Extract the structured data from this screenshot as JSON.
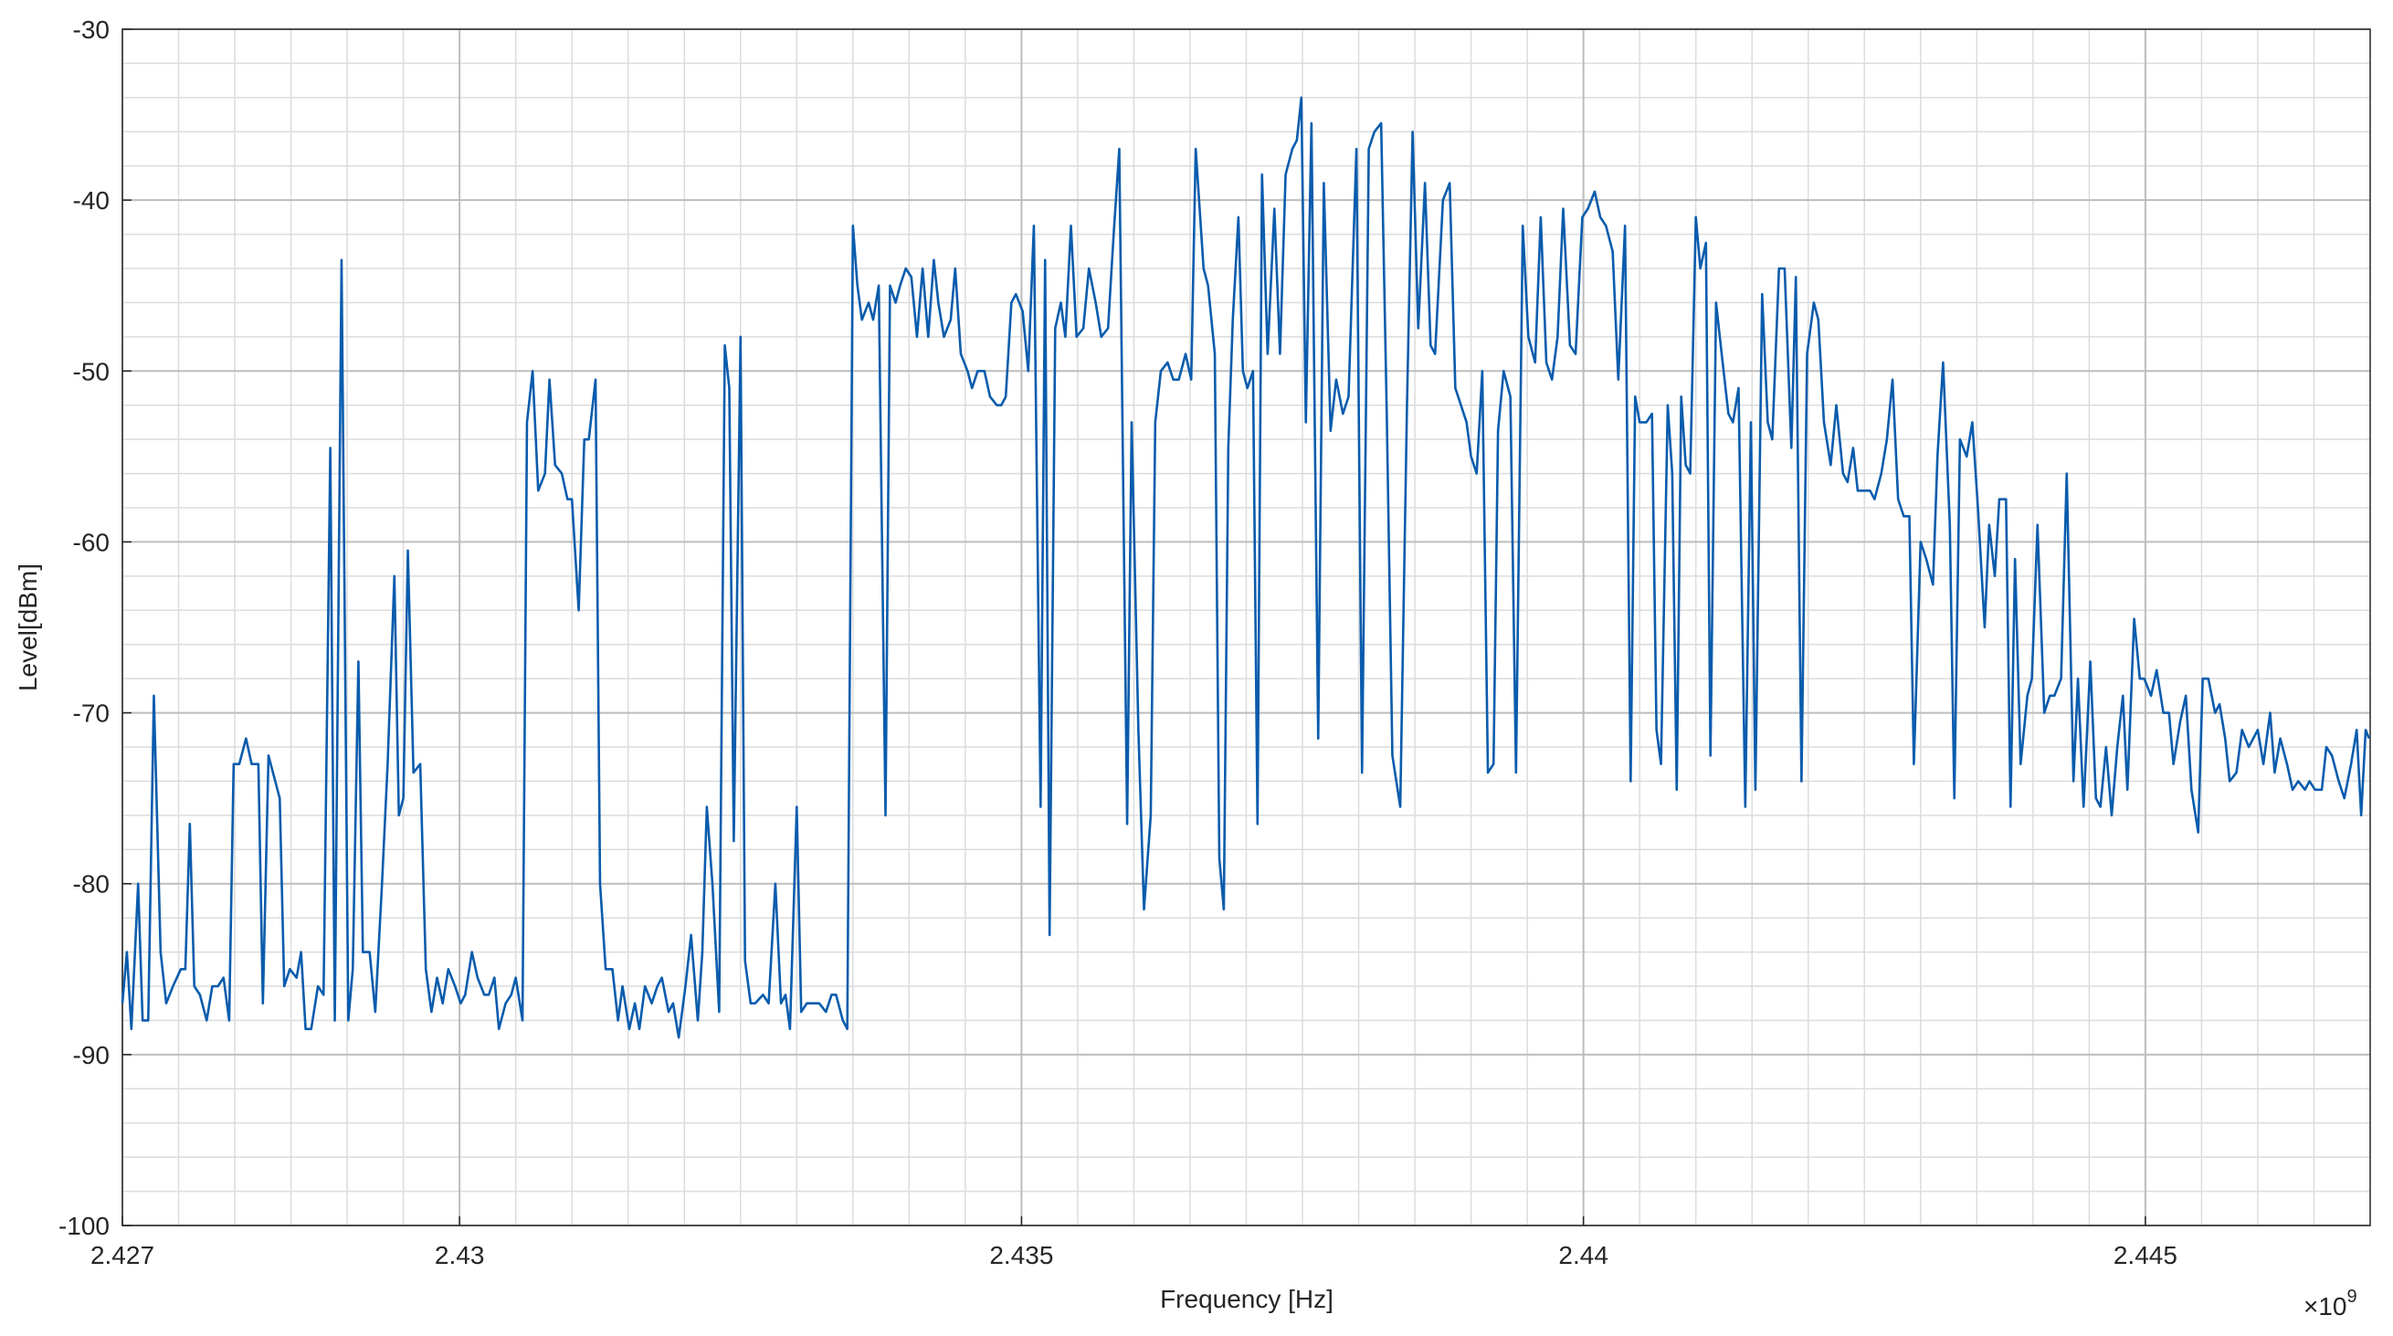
{
  "chart_data": {
    "type": "line",
    "x_label": "Frequency [Hz]",
    "y_label": "Level[dBm]",
    "x_multiplier": "×10",
    "x_exponent": "9",
    "xlim": [
      2.427,
      2.447
    ],
    "xticks": [
      2.427,
      2.43,
      2.435,
      2.44,
      2.445
    ],
    "ylim": [
      -100,
      -30
    ],
    "yticks": [
      -100,
      -90,
      -80,
      -70,
      -60,
      -50,
      -40,
      -30
    ],
    "grid": true,
    "minor_grid": {
      "x_step": 0.0005,
      "y_step": 2
    },
    "color": "#0a5cad",
    "x": [
      2.427,
      2.42704,
      2.42708,
      2.42714,
      2.42718,
      2.42723,
      2.42728,
      2.42734,
      2.42739,
      2.42745,
      2.42752,
      2.42756,
      2.4276,
      2.42764,
      2.42769,
      2.42775,
      2.4278,
      2.42785,
      2.4279,
      2.42795,
      2.42799,
      2.42804,
      2.4281,
      2.42815,
      2.42821,
      2.42825,
      2.4283,
      2.42836,
      2.4284,
      2.42844,
      2.42849,
      2.42855,
      2.42859,
      2.42863,
      2.42868,
      2.42874,
      2.42879,
      2.42885,
      2.42889,
      2.42895,
      2.42901,
      2.42905,
      2.4291,
      2.42914,
      2.4292,
      2.42925,
      2.42931,
      2.42936,
      2.42942,
      2.42946,
      2.4295,
      2.42954,
      2.42959,
      2.42965,
      2.4297,
      2.42975,
      2.4298,
      2.42985,
      2.4299,
      2.42996,
      2.43001,
      2.43005,
      2.43011,
      2.43016,
      2.43022,
      2.43026,
      2.43031,
      2.43035,
      2.43041,
      2.43046,
      2.4305,
      2.43056,
      2.4306,
      2.43065,
      2.4307,
      2.43076,
      2.4308,
      2.43085,
      2.43091,
      2.43096,
      2.431,
      2.43106,
      2.43111,
      2.43115,
      2.43121,
      2.43125,
      2.4313,
      2.43136,
      2.43141,
      2.43145,
      2.43151,
      2.43156,
      2.4316,
      2.43165,
      2.43171,
      2.43176,
      2.4318,
      2.43186,
      2.4319,
      2.43195,
      2.43201,
      2.43206,
      2.43212,
      2.43216,
      2.4322,
      2.43225,
      2.43231,
      2.43236,
      2.4324,
      2.43244,
      2.4325,
      2.43254,
      2.43259,
      2.43263,
      2.4327,
      2.43275,
      2.43281,
      2.43286,
      2.4329,
      2.43294,
      2.433,
      2.43304,
      2.43309,
      2.43315,
      2.4332,
      2.43326,
      2.43331,
      2.43335,
      2.43341,
      2.43345,
      2.4335,
      2.43354,
      2.43358,
      2.43364,
      2.43368,
      2.43373,
      2.43379,
      2.43383,
      2.43388,
      2.43392,
      2.43397,
      2.43402,
      2.43407,
      2.43412,
      2.43417,
      2.43422,
      2.43426,
      2.43431,
      2.43437,
      2.43441,
      2.43446,
      2.43452,
      2.43456,
      2.43461,
      2.43467,
      2.43472,
      2.43478,
      2.43482,
      2.43486,
      2.43491,
      2.43495,
      2.43501,
      2.43506,
      2.43511,
      2.43517,
      2.43521,
      2.43525,
      2.4353,
      2.43535,
      2.43539,
      2.43544,
      2.43549,
      2.43555,
      2.4356,
      2.43566,
      2.43571,
      2.43577,
      2.43582,
      2.43587,
      2.43594,
      2.43598,
      2.43604,
      2.43609,
      2.43615,
      2.43619,
      2.43624,
      2.4363,
      2.43635,
      2.4364,
      2.43646,
      2.43651,
      2.43655,
      2.43662,
      2.43666,
      2.43672,
      2.43676,
      2.4368,
      2.43684,
      2.43688,
      2.43693,
      2.43697,
      2.43701,
      2.43706,
      2.4371,
      2.43714,
      2.43719,
      2.43725,
      2.4373,
      2.43735,
      2.43741,
      2.43745,
      2.43749,
      2.43753,
      2.43758,
      2.43764,
      2.43769,
      2.43775,
      2.4378,
      2.43786,
      2.43791,
      2.43798,
      2.43803,
      2.43809,
      2.43814,
      2.4382,
      2.43825,
      2.4383,
      2.43837,
      2.43843,
      2.43848,
      2.43853,
      2.43859,
      2.43864,
      2.43868,
      2.43875,
      2.43881,
      2.43886,
      2.43891,
      2.43896,
      2.439,
      2.43905,
      2.4391,
      2.43915,
      2.4392,
      2.43924,
      2.43929,
      2.43935,
      2.4394,
      2.43946,
      2.43951,
      2.43957,
      2.43962,
      2.43967,
      2.43972,
      2.43977,
      2.43982,
      2.43988,
      2.43993,
      2.43999,
      2.44004,
      2.4401,
      2.44015,
      2.4402,
      2.44026,
      2.44031,
      2.44037,
      2.44042,
      2.44046,
      2.4405,
      2.44056,
      2.44061,
      2.44065,
      2.44069,
      2.44075,
      2.44079,
      2.44083,
      2.44087,
      2.44091,
      2.44095,
      2.441,
      2.44104,
      2.44109,
      2.44113,
      2.44118,
      2.44123,
      2.44129,
      2.44133,
      2.44138,
      2.44144,
      2.44149,
      2.44153,
      2.44159,
      2.44164,
      2.44168,
      2.44174,
      2.44179,
      2.44185,
      2.44189,
      2.44194,
      2.44199,
      2.44205,
      2.44209,
      2.44214,
      2.4422,
      2.44225,
      2.44231,
      2.44235,
      2.4424,
      2.44244,
      2.4425,
      2.44255,
      2.44259,
      2.44265,
      2.4427,
      2.44275,
      2.4428,
      2.44285,
      2.4429,
      2.44294,
      2.443,
      2.44305,
      2.44311,
      2.44315,
      2.4432,
      2.44326,
      2.4433,
      2.44335,
      2.44341,
      2.44346,
      2.44351,
      2.44357,
      2.44361,
      2.44366,
      2.4437,
      2.44376,
      2.4438,
      2.44384,
      2.44389,
      2.44395,
      2.44399,
      2.44404,
      2.4441,
      2.44415,
      2.44419,
      2.44425,
      2.4443,
      2.44436,
      2.4444,
      2.44445,
      2.44451,
      2.44456,
      2.4446,
      2.44465,
      2.4447,
      2.44475,
      2.4448,
      2.44484,
      2.4449,
      2.44495,
      2.44499,
      2.44505,
      2.4451,
      2.44516,
      2.44521,
      2.44525,
      2.44531,
      2.44536,
      2.44541,
      2.44547,
      2.44551,
      2.44556,
      2.44562,
      2.44566,
      2.44571,
      2.44575,
      2.44581,
      2.44586,
      2.44592,
      2.44596,
      2.446,
      2.44605,
      2.44611,
      2.44615,
      2.4462,
      2.44626,
      2.44631,
      2.44636,
      2.44642,
      2.44646,
      2.44651,
      2.44657,
      2.44661,
      2.44666,
      2.44672,
      2.44677,
      2.44683,
      2.44688,
      2.44692,
      2.44696,
      2.44699
    ],
    "values": [
      -87,
      -84,
      -88.5,
      -80,
      -88,
      -88,
      -69,
      -84,
      -87,
      -86,
      -85,
      -85,
      -76.5,
      -86,
      -86.5,
      -88,
      -86,
      -86,
      -85.5,
      -88,
      -73,
      -73,
      -71.5,
      -73,
      -73,
      -87,
      -72.5,
      -74,
      -75,
      -86,
      -85,
      -85.5,
      -84,
      -88.5,
      -88.5,
      -86,
      -86.5,
      -54.5,
      -88,
      -43.5,
      -88,
      -85,
      -67,
      -84,
      -84,
      -87.5,
      -80,
      -73,
      -62,
      -76,
      -75,
      -60.5,
      -73.5,
      -73,
      -85,
      -87.5,
      -85.5,
      -87,
      -85,
      -86,
      -87,
      -86.5,
      -84,
      -85.5,
      -86.5,
      -86.5,
      -85.5,
      -88.5,
      -87,
      -86.5,
      -85.5,
      -88,
      -53,
      -50,
      -57,
      -56,
      -50.5,
      -55.5,
      -56,
      -57.5,
      -57.5,
      -64,
      -54,
      -54,
      -50.5,
      -80,
      -85,
      -85,
      -88,
      -86,
      -88.5,
      -87,
      -88.5,
      -86,
      -87,
      -86,
      -85.5,
      -87.5,
      -87,
      -89,
      -86,
      -83,
      -88,
      -84,
      -75.5,
      -80,
      -87.5,
      -48.5,
      -51,
      -77.5,
      -48,
      -84.5,
      -87,
      -87,
      -86.5,
      -87,
      -80,
      -87,
      -86.5,
      -88.5,
      -75.5,
      -87.5,
      -87,
      -87,
      -87,
      -87.5,
      -86.5,
      -86.5,
      -88,
      -88.5,
      -41.5,
      -45,
      -47,
      -46,
      -47,
      -45,
      -76,
      -45,
      -46,
      -45,
      -44,
      -44.5,
      -48,
      -44,
      -48,
      -43.5,
      -46,
      -48,
      -47,
      -44,
      -49,
      -50,
      -51,
      -50,
      -50,
      -51.5,
      -52,
      -52,
      -51.5,
      -46,
      -45.5,
      -46.5,
      -50,
      -41.5,
      -75.5,
      -43.5,
      -83,
      -47.5,
      -46,
      -48,
      -41.5,
      -48,
      -47.5,
      -44,
      -46,
      -48,
      -47.5,
      -42,
      -37,
      -76.5,
      -53,
      -71,
      -81.5,
      -76,
      -53,
      -50,
      -49.5,
      -50.5,
      -50.5,
      -49,
      -50.5,
      -37,
      -44,
      -45,
      -49,
      -78.5,
      -81.5,
      -54.5,
      -47,
      -41,
      -50,
      -51,
      -50,
      -76.5,
      -38.5,
      -49,
      -40.5,
      -49,
      -38.5,
      -37,
      -36.5,
      -34,
      -53,
      -35.5,
      -71.5,
      -39,
      -53.5,
      -50.5,
      -52.5,
      -51.5,
      -37,
      -73.5,
      -37,
      -36,
      -35.5,
      -52.5,
      -72.5,
      -75.5,
      -52,
      -36,
      -47.5,
      -39,
      -48.5,
      -49,
      -40,
      -39,
      -51,
      -52,
      -53,
      -55,
      -56,
      -50,
      -73.5,
      -73,
      -53.5,
      -50,
      -51.5,
      -73.5,
      -41.5,
      -48,
      -49.5,
      -41,
      -49.5,
      -50.5,
      -48,
      -40.5,
      -48.5,
      -49,
      -41,
      -40.5,
      -39.5,
      -41,
      -41.5,
      -43,
      -50.5,
      -41.5,
      -74,
      -51.5,
      -53,
      -53,
      -52.5,
      -71,
      -73,
      -52,
      -56,
      -74.5,
      -51.5,
      -55.5,
      -56,
      -41,
      -44,
      -42.5,
      -72.5,
      -46,
      -49,
      -52.5,
      -53,
      -51,
      -75.5,
      -53,
      -74.5,
      -45.5,
      -53,
      -54,
      -44,
      -44,
      -54.5,
      -44.5,
      -74,
      -49,
      -46,
      -47,
      -53,
      -55.5,
      -52,
      -56,
      -56.5,
      -54.5,
      -57,
      -57,
      -57,
      -57.5,
      -56,
      -54,
      -50.5,
      -57.5,
      -58.5,
      -58.5,
      -73,
      -60,
      -61,
      -62.5,
      -55,
      -49.5,
      -59,
      -75,
      -54,
      -55,
      -53,
      -58,
      -65,
      -59,
      -62,
      -57.5,
      -57.5,
      -75.5,
      -61,
      -73,
      -69,
      -68,
      -59,
      -70,
      -69,
      -69,
      -68,
      -56,
      -74,
      -68,
      -75.5,
      -67,
      -75,
      -75.5,
      -72,
      -76,
      -72,
      -69,
      -74.5,
      -64.5,
      -68,
      -68,
      -69,
      -67.5,
      -70,
      -70,
      -73,
      -70.5,
      -69,
      -74.5,
      -77,
      -68,
      -68,
      -70,
      -69.5,
      -71.5,
      -74,
      -73.5,
      -71,
      -72,
      -71.5,
      -71,
      -73,
      -70,
      -73.5,
      -71.5,
      -73,
      -74.5,
      -74,
      -74.5,
      -74,
      -74.5,
      -74.5,
      -72,
      -72.5,
      -74,
      -75,
      -73,
      -71,
      -76,
      -71,
      -71.5
    ]
  }
}
